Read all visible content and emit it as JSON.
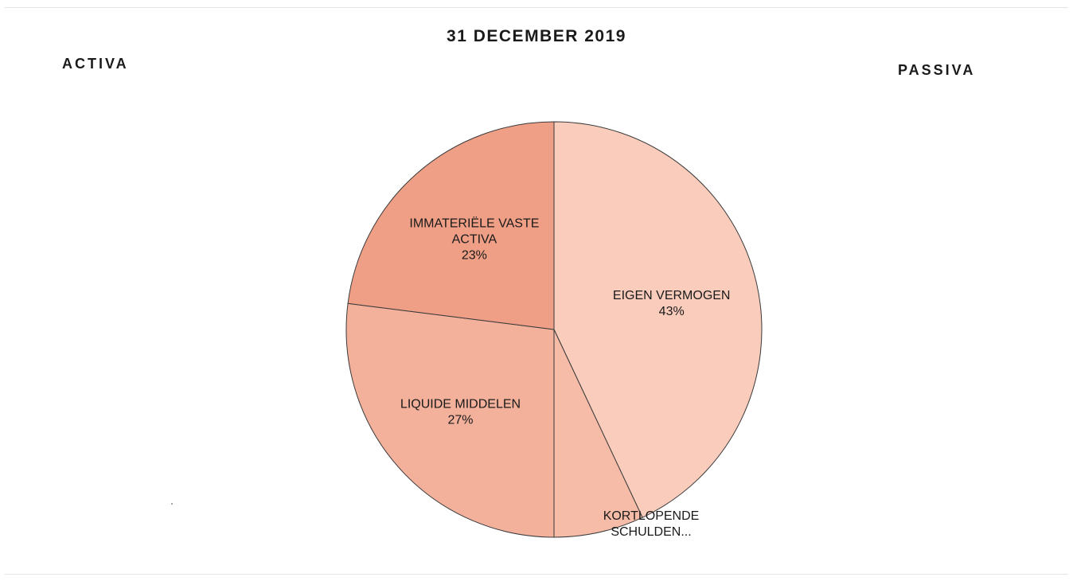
{
  "header": {
    "title": "31 DECEMBER 2019",
    "left_label": "ACTIVA",
    "right_label": "PASSIVA"
  },
  "chart_data": {
    "type": "pie",
    "title": "31 DECEMBER 2019",
    "start_angle_deg": 0,
    "direction": "clockwise",
    "edge_color": "#3a3a3a",
    "slices": [
      {
        "name": "EIGEN VERMOGEN",
        "value": 43,
        "label_lines": [
          "EIGEN VERMOGEN",
          "43%"
        ],
        "color": "#f9ccbc"
      },
      {
        "name": "KORTLOPENDE SCHULDEN",
        "value": 7,
        "label_lines": [
          "KORTLOPENDE",
          "SCHULDEN..."
        ],
        "color": "#f6bca8"
      },
      {
        "name": "LIQUIDE MIDDELEN",
        "value": 27,
        "label_lines": [
          "LIQUIDE MIDDELEN",
          "27%"
        ],
        "color": "#f3b19c"
      },
      {
        "name": "IMMATERIËLE VASTE ACTIVA",
        "value": 23,
        "label_lines": [
          "IMMATERIËLE VASTE",
          "ACTIVA",
          "23%"
        ],
        "color": "#ef9f85"
      }
    ]
  }
}
